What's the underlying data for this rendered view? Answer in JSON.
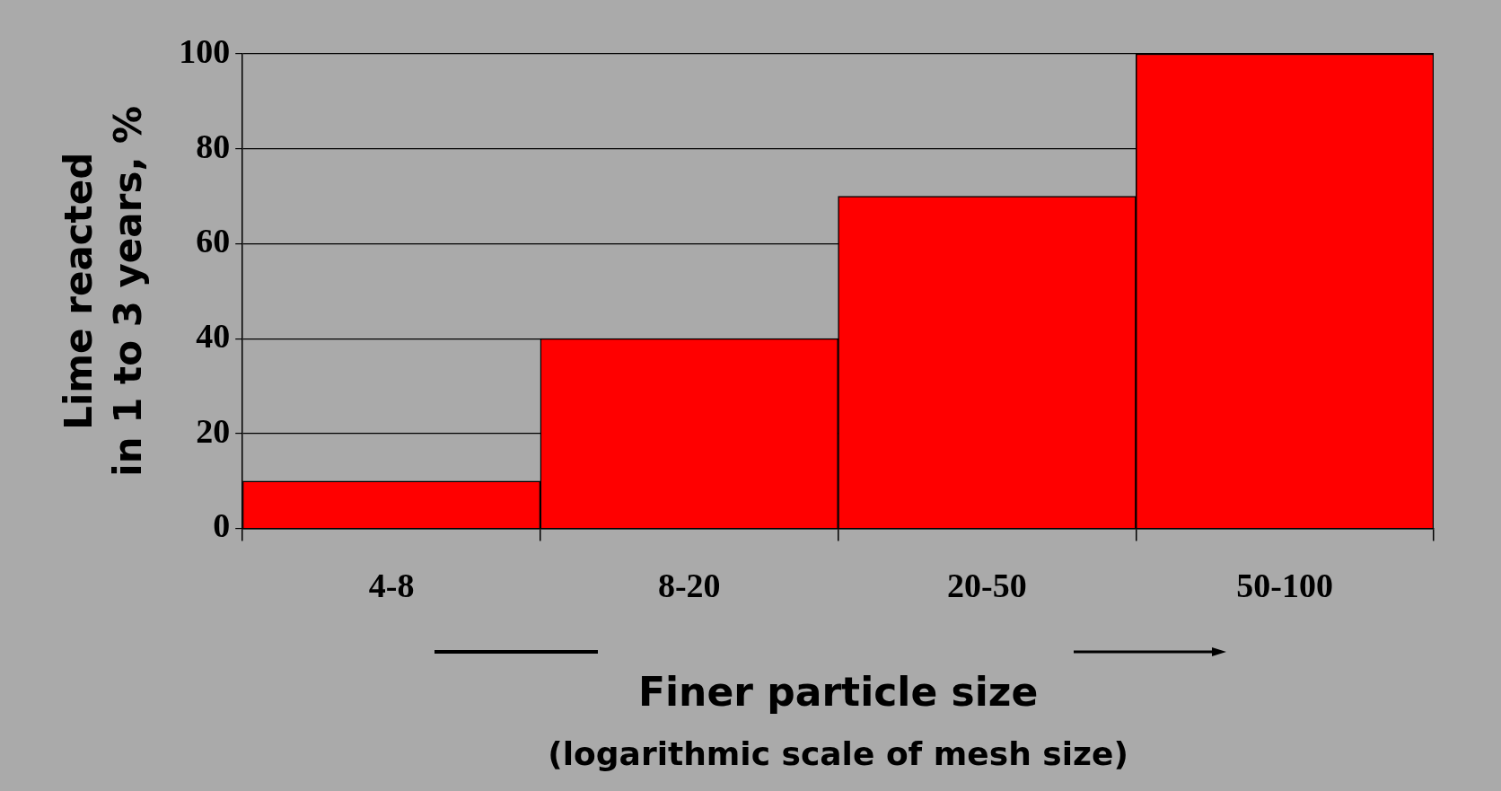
{
  "chart_data": {
    "type": "bar",
    "xlabel": "Finer particle size",
    "ylabel": "Lime reacted\nin 1 to 3 years, %",
    "annotations": [
      "(logarithmic scale of mesh size)"
    ],
    "categories": [
      "4-8",
      "8-20",
      "20-50",
      "50-100"
    ],
    "values": [
      10,
      40,
      70,
      100
    ],
    "color": "#ff0000",
    "ylim": [
      0,
      100
    ],
    "yticks": [
      0,
      20,
      40,
      60,
      80,
      100
    ],
    "grid": "y"
  }
}
